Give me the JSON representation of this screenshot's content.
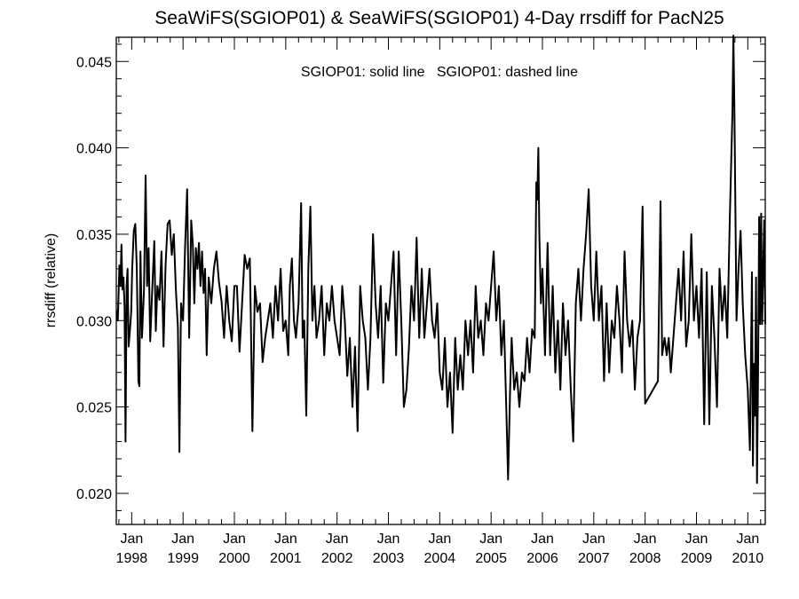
{
  "chart_data": {
    "type": "line",
    "title": "SeaWiFS(SGIOP01) & SeaWiFS(SGIOP01) 4-Day rrsdiff for PacN25",
    "xlabel": "",
    "ylabel": "rrsdiff (relative)",
    "legend_text": "SGIOP01: solid line   SGIOP01: dashed line",
    "legend_position": "top-center",
    "grid": false,
    "xlim": [
      1997.7,
      2010.34
    ],
    "ylim": [
      0.0182,
      0.0464
    ],
    "yticks": [
      "0.020",
      "0.025",
      "0.030",
      "0.035",
      "0.040",
      "0.045"
    ],
    "ytick_values": [
      0.02,
      0.025,
      0.03,
      0.035,
      0.04,
      0.045
    ],
    "xtick_month": "Jan",
    "xticks": [
      "1998",
      "1999",
      "2000",
      "2001",
      "2002",
      "2003",
      "2004",
      "2005",
      "2006",
      "2007",
      "2008",
      "2009",
      "2010"
    ],
    "xtick_values": [
      1998,
      1999,
      2000,
      2001,
      2002,
      2003,
      2004,
      2005,
      2006,
      2007,
      2008,
      2009,
      2010
    ],
    "series": [
      {
        "line_style": "solid",
        "color": "#000000",
        "points": [
          [
            1997.71,
            0.0306
          ],
          [
            1997.73,
            0.03
          ],
          [
            1997.76,
            0.0332
          ],
          [
            1997.78,
            0.032
          ],
          [
            1997.8,
            0.0344
          ],
          [
            1997.82,
            0.0318
          ],
          [
            1997.84,
            0.0325
          ],
          [
            1997.86,
            0.0308
          ],
          [
            1997.88,
            0.023
          ],
          [
            1997.9,
            0.032
          ],
          [
            1997.92,
            0.033
          ],
          [
            1997.94,
            0.0285
          ],
          [
            1997.97,
            0.0296
          ],
          [
            1997.99,
            0.0305
          ],
          [
            1998.01,
            0.033
          ],
          [
            1998.04,
            0.0352
          ],
          [
            1998.07,
            0.0356
          ],
          [
            1998.1,
            0.033
          ],
          [
            1998.13,
            0.0265
          ],
          [
            1998.15,
            0.0262
          ],
          [
            1998.17,
            0.034
          ],
          [
            1998.2,
            0.029
          ],
          [
            1998.24,
            0.0318
          ],
          [
            1998.27,
            0.0384
          ],
          [
            1998.3,
            0.032
          ],
          [
            1998.33,
            0.0342
          ],
          [
            1998.36,
            0.0288
          ],
          [
            1998.4,
            0.0318
          ],
          [
            1998.44,
            0.0346
          ],
          [
            1998.47,
            0.0294
          ],
          [
            1998.5,
            0.032
          ],
          [
            1998.54,
            0.0312
          ],
          [
            1998.58,
            0.034
          ],
          [
            1998.62,
            0.0285
          ],
          [
            1998.66,
            0.0332
          ],
          [
            1998.7,
            0.0356
          ],
          [
            1998.74,
            0.0358
          ],
          [
            1998.78,
            0.0338
          ],
          [
            1998.82,
            0.035
          ],
          [
            1998.86,
            0.0318
          ],
          [
            1998.9,
            0.0296
          ],
          [
            1998.93,
            0.0224
          ],
          [
            1998.96,
            0.031
          ],
          [
            1999.0,
            0.03
          ],
          [
            1999.04,
            0.0343
          ],
          [
            1999.08,
            0.0376
          ],
          [
            1999.12,
            0.029
          ],
          [
            1999.16,
            0.0358
          ],
          [
            1999.19,
            0.0344
          ],
          [
            1999.22,
            0.031
          ],
          [
            1999.25,
            0.0342
          ],
          [
            1999.28,
            0.033
          ],
          [
            1999.31,
            0.0345
          ],
          [
            1999.34,
            0.032
          ],
          [
            1999.37,
            0.034
          ],
          [
            1999.4,
            0.0316
          ],
          [
            1999.43,
            0.033
          ],
          [
            1999.46,
            0.028
          ],
          [
            1999.5,
            0.0325
          ],
          [
            1999.55,
            0.031
          ],
          [
            1999.6,
            0.033
          ],
          [
            1999.65,
            0.034
          ],
          [
            1999.7,
            0.0322
          ],
          [
            1999.75,
            0.0311
          ],
          [
            1999.8,
            0.029
          ],
          [
            1999.85,
            0.032
          ],
          [
            1999.9,
            0.03
          ],
          [
            1999.95,
            0.0288
          ],
          [
            2000.0,
            0.032
          ],
          [
            2000.05,
            0.032
          ],
          [
            2000.1,
            0.0282
          ],
          [
            2000.15,
            0.031
          ],
          [
            2000.2,
            0.0338
          ],
          [
            2000.25,
            0.033
          ],
          [
            2000.3,
            0.0336
          ],
          [
            2000.32,
            0.0302
          ],
          [
            2000.35,
            0.0236
          ],
          [
            2000.4,
            0.032
          ],
          [
            2000.45,
            0.0305
          ],
          [
            2000.5,
            0.031
          ],
          [
            2000.55,
            0.0276
          ],
          [
            2000.6,
            0.029
          ],
          [
            2000.65,
            0.03
          ],
          [
            2000.7,
            0.031
          ],
          [
            2000.75,
            0.029
          ],
          [
            2000.8,
            0.032
          ],
          [
            2000.85,
            0.03
          ],
          [
            2000.9,
            0.033
          ],
          [
            2000.95,
            0.0294
          ],
          [
            2001.0,
            0.03
          ],
          [
            2001.05,
            0.028
          ],
          [
            2001.08,
            0.032
          ],
          [
            2001.12,
            0.0336
          ],
          [
            2001.16,
            0.03
          ],
          [
            2001.2,
            0.029
          ],
          [
            2001.25,
            0.031
          ],
          [
            2001.3,
            0.0368
          ],
          [
            2001.33,
            0.029
          ],
          [
            2001.36,
            0.03
          ],
          [
            2001.4,
            0.0245
          ],
          [
            2001.44,
            0.033
          ],
          [
            2001.48,
            0.0366
          ],
          [
            2001.52,
            0.03
          ],
          [
            2001.56,
            0.032
          ],
          [
            2001.6,
            0.029
          ],
          [
            2001.65,
            0.03
          ],
          [
            2001.7,
            0.032
          ],
          [
            2001.75,
            0.028
          ],
          [
            2001.8,
            0.031
          ],
          [
            2001.85,
            0.03
          ],
          [
            2001.9,
            0.032
          ],
          [
            2001.95,
            0.03
          ],
          [
            2002.0,
            0.029
          ],
          [
            2002.05,
            0.028
          ],
          [
            2002.1,
            0.032
          ],
          [
            2002.15,
            0.03
          ],
          [
            2002.2,
            0.0268
          ],
          [
            2002.25,
            0.029
          ],
          [
            2002.3,
            0.025
          ],
          [
            2002.35,
            0.0285
          ],
          [
            2002.4,
            0.0236
          ],
          [
            2002.45,
            0.032
          ],
          [
            2002.5,
            0.03
          ],
          [
            2002.55,
            0.029
          ],
          [
            2002.6,
            0.026
          ],
          [
            2002.65,
            0.029
          ],
          [
            2002.7,
            0.035
          ],
          [
            2002.75,
            0.031
          ],
          [
            2002.8,
            0.029
          ],
          [
            2002.85,
            0.032
          ],
          [
            2002.9,
            0.0264
          ],
          [
            2002.95,
            0.031
          ],
          [
            2003.0,
            0.03
          ],
          [
            2003.05,
            0.032
          ],
          [
            2003.1,
            0.034
          ],
          [
            2003.15,
            0.028
          ],
          [
            2003.2,
            0.034
          ],
          [
            2003.25,
            0.03
          ],
          [
            2003.3,
            0.025
          ],
          [
            2003.35,
            0.026
          ],
          [
            2003.4,
            0.0284
          ],
          [
            2003.45,
            0.032
          ],
          [
            2003.5,
            0.03
          ],
          [
            2003.55,
            0.0348
          ],
          [
            2003.6,
            0.029
          ],
          [
            2003.65,
            0.033
          ],
          [
            2003.7,
            0.029
          ],
          [
            2003.75,
            0.031
          ],
          [
            2003.8,
            0.033
          ],
          [
            2003.85,
            0.03
          ],
          [
            2003.9,
            0.029
          ],
          [
            2003.95,
            0.031
          ],
          [
            2004.0,
            0.027
          ],
          [
            2004.05,
            0.026
          ],
          [
            2004.1,
            0.029
          ],
          [
            2004.15,
            0.025
          ],
          [
            2004.2,
            0.027
          ],
          [
            2004.25,
            0.0235
          ],
          [
            2004.3,
            0.029
          ],
          [
            2004.35,
            0.026
          ],
          [
            2004.4,
            0.028
          ],
          [
            2004.45,
            0.026
          ],
          [
            2004.5,
            0.03
          ],
          [
            2004.55,
            0.028
          ],
          [
            2004.6,
            0.03
          ],
          [
            2004.65,
            0.027
          ],
          [
            2004.7,
            0.032
          ],
          [
            2004.75,
            0.029
          ],
          [
            2004.8,
            0.03
          ],
          [
            2004.85,
            0.028
          ],
          [
            2004.9,
            0.031
          ],
          [
            2004.95,
            0.03
          ],
          [
            2005.0,
            0.032
          ],
          [
            2005.05,
            0.034
          ],
          [
            2005.1,
            0.03
          ],
          [
            2005.15,
            0.032
          ],
          [
            2005.2,
            0.028
          ],
          [
            2005.25,
            0.03
          ],
          [
            2005.3,
            0.0245
          ],
          [
            2005.33,
            0.0208
          ],
          [
            2005.37,
            0.026
          ],
          [
            2005.4,
            0.029
          ],
          [
            2005.45,
            0.026
          ],
          [
            2005.5,
            0.027
          ],
          [
            2005.55,
            0.025
          ],
          [
            2005.6,
            0.027
          ],
          [
            2005.65,
            0.0265
          ],
          [
            2005.7,
            0.029
          ],
          [
            2005.75,
            0.027
          ],
          [
            2005.8,
            0.0295
          ],
          [
            2005.85,
            0.029
          ],
          [
            2005.88,
            0.038
          ],
          [
            2005.9,
            0.037
          ],
          [
            2005.92,
            0.04
          ],
          [
            2005.94,
            0.035
          ],
          [
            2005.97,
            0.031
          ],
          [
            2006.0,
            0.033
          ],
          [
            2006.05,
            0.028
          ],
          [
            2006.1,
            0.0345
          ],
          [
            2006.15,
            0.028
          ],
          [
            2006.2,
            0.032
          ],
          [
            2006.25,
            0.027
          ],
          [
            2006.3,
            0.03
          ],
          [
            2006.35,
            0.026
          ],
          [
            2006.4,
            0.031
          ],
          [
            2006.45,
            0.028
          ],
          [
            2006.5,
            0.03
          ],
          [
            2006.55,
            0.0262
          ],
          [
            2006.6,
            0.023
          ],
          [
            2006.65,
            0.031
          ],
          [
            2006.7,
            0.033
          ],
          [
            2006.75,
            0.03
          ],
          [
            2006.8,
            0.033
          ],
          [
            2006.85,
            0.035
          ],
          [
            2006.9,
            0.0376
          ],
          [
            2006.95,
            0.032
          ],
          [
            2007.0,
            0.03
          ],
          [
            2007.05,
            0.034
          ],
          [
            2007.1,
            0.03
          ],
          [
            2007.15,
            0.032
          ],
          [
            2007.2,
            0.0265
          ],
          [
            2007.25,
            0.031
          ],
          [
            2007.3,
            0.027
          ],
          [
            2007.35,
            0.03
          ],
          [
            2007.4,
            0.029
          ],
          [
            2007.45,
            0.032
          ],
          [
            2007.5,
            0.03
          ],
          [
            2007.55,
            0.027
          ],
          [
            2007.6,
            0.034
          ],
          [
            2007.65,
            0.03
          ],
          [
            2007.7,
            0.0285
          ],
          [
            2007.75,
            0.03
          ],
          [
            2007.8,
            0.026
          ],
          [
            2007.85,
            0.029
          ],
          [
            2007.9,
            0.03
          ],
          [
            2007.95,
            0.0366
          ],
          [
            2008.0,
            0.0252
          ],
          [
            2008.25,
            0.0265
          ],
          [
            2008.3,
            0.0369
          ],
          [
            2008.33,
            0.028
          ],
          [
            2008.38,
            0.029
          ],
          [
            2008.42,
            0.028
          ],
          [
            2008.46,
            0.029
          ],
          [
            2008.5,
            0.027
          ],
          [
            2008.55,
            0.029
          ],
          [
            2008.6,
            0.031
          ],
          [
            2008.65,
            0.033
          ],
          [
            2008.7,
            0.03
          ],
          [
            2008.75,
            0.034
          ],
          [
            2008.8,
            0.0285
          ],
          [
            2008.85,
            0.03
          ],
          [
            2008.9,
            0.035
          ],
          [
            2008.95,
            0.03
          ],
          [
            2009.0,
            0.032
          ],
          [
            2009.05,
            0.029
          ],
          [
            2009.1,
            0.033
          ],
          [
            2009.15,
            0.024
          ],
          [
            2009.2,
            0.0328
          ],
          [
            2009.25,
            0.024
          ],
          [
            2009.3,
            0.032
          ],
          [
            2009.35,
            0.029
          ],
          [
            2009.4,
            0.025
          ],
          [
            2009.45,
            0.033
          ],
          [
            2009.5,
            0.03
          ],
          [
            2009.55,
            0.032
          ],
          [
            2009.6,
            0.029
          ],
          [
            2009.65,
            0.036
          ],
          [
            2009.7,
            0.042
          ],
          [
            2009.72,
            0.0465
          ],
          [
            2009.74,
            0.042
          ],
          [
            2009.78,
            0.03
          ],
          [
            2009.82,
            0.033
          ],
          [
            2009.86,
            0.0352
          ],
          [
            2009.9,
            0.031
          ],
          [
            2009.95,
            0.028
          ],
          [
            2010.0,
            0.026
          ],
          [
            2010.04,
            0.0225
          ],
          [
            2010.08,
            0.0328
          ],
          [
            2010.1,
            0.0216
          ],
          [
            2010.12,
            0.0275
          ],
          [
            2010.14,
            0.0245
          ],
          [
            2010.16,
            0.0325
          ],
          [
            2010.18,
            0.0206
          ],
          [
            2010.2,
            0.027
          ],
          [
            2010.22,
            0.036
          ],
          [
            2010.24,
            0.0298
          ],
          [
            2010.26,
            0.0362
          ],
          [
            2010.28,
            0.0298
          ],
          [
            2010.3,
            0.033
          ],
          [
            2010.32,
            0.0358
          ],
          [
            2010.34,
            0.0298
          ]
        ]
      }
    ]
  }
}
